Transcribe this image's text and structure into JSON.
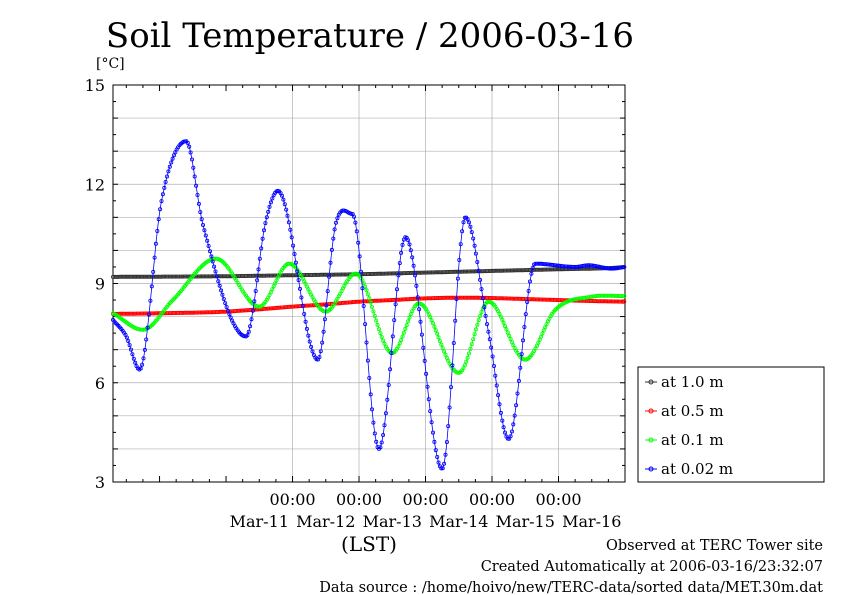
{
  "chart_data": {
    "type": "line",
    "title": "Soil Temperature / 2006-03-16",
    "ylabel": "[°C]",
    "xlabel": "(LST)",
    "ylim": [
      3,
      15
    ],
    "yticks": [
      3,
      6,
      9,
      12,
      15
    ],
    "xlim": [
      -1.7,
      6.0
    ],
    "x_time_labels": [
      "00:00",
      "00:00",
      "00:00",
      "00:00",
      "00:00"
    ],
    "x_time_ticks": [
      1,
      2,
      3,
      4,
      5
    ],
    "x_date_labels": [
      "Mar-11",
      "Mar-12",
      "Mar-13",
      "Mar-14",
      "Mar-15",
      "Mar-16"
    ],
    "x_date_ticks": [
      0.5,
      1.5,
      2.5,
      3.5,
      4.5,
      5.5
    ],
    "grid": true,
    "legend_position": "right",
    "series": [
      {
        "name": "at 1.0 m",
        "color": "#333333",
        "x": [
          -1.7,
          0,
          1,
          2,
          3,
          4,
          5,
          5.8,
          6.0
        ],
        "y": [
          9.2,
          9.22,
          9.25,
          9.28,
          9.33,
          9.38,
          9.43,
          9.47,
          9.5
        ]
      },
      {
        "name": "at 0.5 m",
        "color": "#ff0000",
        "x": [
          -1.7,
          -1.0,
          0,
          0.5,
          1,
          1.5,
          2,
          2.5,
          3,
          3.5,
          4,
          4.5,
          5,
          5.5,
          6.0
        ],
        "y": [
          8.08,
          8.1,
          8.15,
          8.22,
          8.3,
          8.37,
          8.45,
          8.5,
          8.55,
          8.57,
          8.56,
          8.53,
          8.5,
          8.47,
          8.45
        ]
      },
      {
        "name": "at 0.1 m",
        "color": "#00ff00",
        "x": [
          -1.7,
          -1.25,
          -0.8,
          -0.15,
          0.5,
          0.95,
          1.5,
          1.95,
          2.5,
          2.9,
          3.5,
          3.95,
          4.5,
          4.95,
          5.5,
          6.0
        ],
        "y": [
          8.1,
          7.6,
          8.5,
          9.75,
          8.3,
          9.6,
          8.15,
          9.3,
          6.9,
          8.4,
          6.3,
          8.45,
          6.7,
          8.2,
          8.6,
          8.62
        ]
      },
      {
        "name": "at 0.02 m",
        "color": "#0000ff",
        "x": [
          -1.7,
          -1.5,
          -1.3,
          -0.97,
          -0.6,
          -0.35,
          0.3,
          0.6,
          0.78,
          1.38,
          1.65,
          1.9,
          2.3,
          2.7,
          3.25,
          3.6,
          3.95,
          4.25,
          4.65,
          5.25,
          5.45,
          5.8,
          6.0
        ],
        "y": [
          7.9,
          7.4,
          6.4,
          11.5,
          13.3,
          10.8,
          7.4,
          10.9,
          11.8,
          6.7,
          10.8,
          11.1,
          4.0,
          10.4,
          3.4,
          11.0,
          7.5,
          4.3,
          9.6,
          9.5,
          9.55,
          9.45,
          9.5
        ]
      }
    ]
  },
  "footer": {
    "line1": "Observed at TERC Tower site",
    "line2": "Created Automatically at 2006-03-16/23:32:07",
    "line3": "Data source : /home/hoivo/new/TERC-data/sorted  data/MET.30m.dat"
  }
}
